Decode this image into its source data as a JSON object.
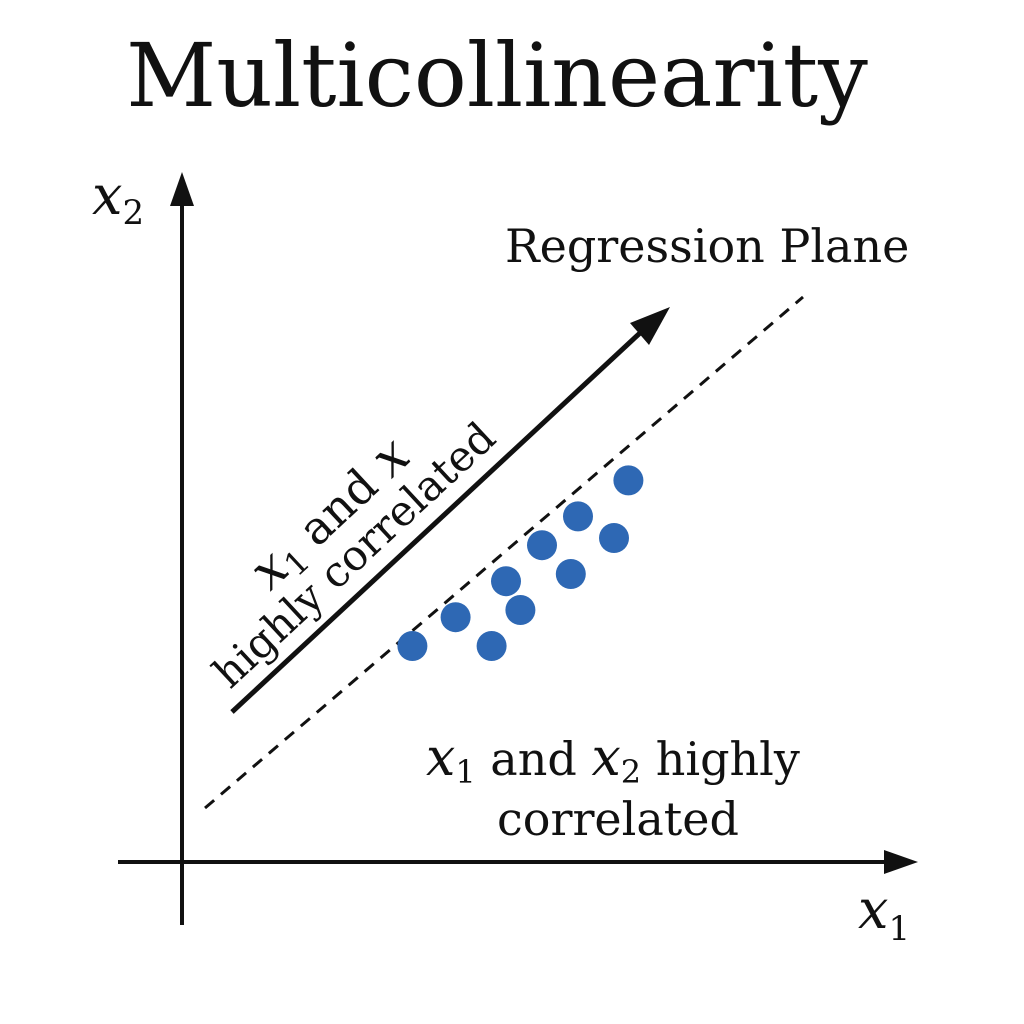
{
  "title": "Multicollinearity",
  "axes": {
    "x_label": {
      "var": "x",
      "sub": "1"
    },
    "y_label": {
      "var": "x",
      "sub": "2"
    }
  },
  "annotations": {
    "regression_plane": "Regression Plane",
    "arrow_label": {
      "line1_var": "x",
      "line1_sub": "1",
      "line1_text": " and ",
      "line1_var2": "x",
      "line2": "highly correlated"
    },
    "bottom_label": {
      "line1_var1": "x",
      "line1_sub1": "1",
      "line1_text1": " and ",
      "line1_var2": "x",
      "line1_sub2": "2",
      "line1_text2": " highly",
      "line2": "correlated"
    }
  },
  "colors": {
    "points": "#2e68b4",
    "ink": "#111111",
    "background": "#ffffff"
  },
  "chart_data": {
    "type": "scatter",
    "title": "Multicollinearity",
    "xlabel": "x1",
    "ylabel": "x2",
    "grid": false,
    "series": [
      {
        "x": [
          3.2,
          3.8,
          4.3,
          4.5,
          4.7,
          5.0,
          5.4,
          5.5,
          6.0,
          6.2
        ],
        "y": [
          3.0,
          3.4,
          3.0,
          3.9,
          3.5,
          4.4,
          4.0,
          4.8,
          4.5,
          5.3
        ]
      }
    ],
    "reference_line": {
      "style": "dashed",
      "label": "Regression Plane"
    }
  }
}
